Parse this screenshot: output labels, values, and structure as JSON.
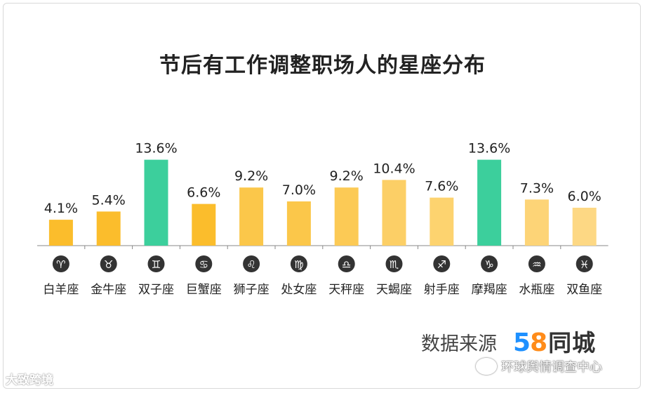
{
  "chart_data": {
    "type": "bar",
    "title": "节后有工作调整职场人的星座分布",
    "categories": [
      "白羊座",
      "金牛座",
      "双子座",
      "巨蟹座",
      "狮子座",
      "处女座",
      "天秤座",
      "天蝎座",
      "射手座",
      "摩羯座",
      "水瓶座",
      "双鱼座"
    ],
    "symbols": [
      "♈",
      "♉",
      "♊",
      "♋",
      "♌",
      "♍",
      "♎",
      "♏",
      "♐",
      "♑",
      "♒",
      "♓"
    ],
    "values": [
      4.1,
      5.4,
      13.6,
      6.6,
      9.2,
      7.0,
      9.2,
      10.4,
      7.6,
      13.6,
      7.3,
      6.0
    ],
    "value_labels": [
      "4.1%",
      "5.4%",
      "13.6%",
      "6.6%",
      "9.2%",
      "7.0%",
      "9.2%",
      "10.4%",
      "7.6%",
      "13.6%",
      "7.3%",
      "6.0%"
    ],
    "bar_colors": [
      "#fbbd2c",
      "#fbbd2c",
      "#3ccf9c",
      "#fbbd2c",
      "#fbc74a",
      "#fbc74a",
      "#fcca55",
      "#fccf66",
      "#fdd36f",
      "#3ccf9c",
      "#fdd477",
      "#fdd884"
    ],
    "ylim": [
      0,
      15
    ],
    "xlabel": "",
    "ylabel": "",
    "grid": false,
    "legend": "none"
  },
  "footer": {
    "source_label": "数据来源",
    "logo_digit_5": "5",
    "logo_digit_8": "8",
    "logo_text": "同城"
  },
  "watermarks": {
    "left": "大致跨境",
    "right": "环球舆情调查中心"
  },
  "colors": {
    "highlight": "#3ccf9c",
    "base": "#fbbd2c",
    "axis": "#888888",
    "symbol_bg": "#333333"
  }
}
